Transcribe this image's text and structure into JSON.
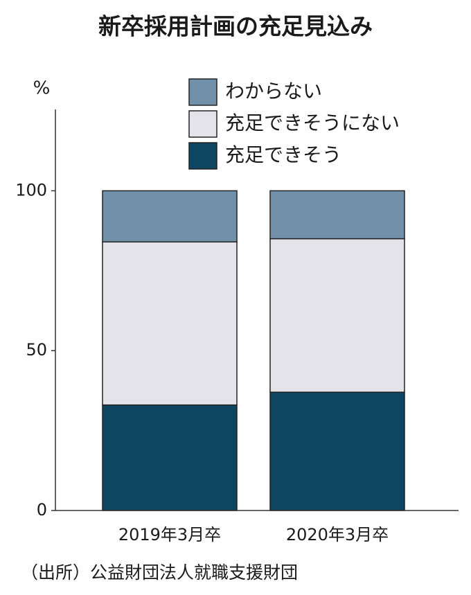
{
  "chart_data": {
    "type": "stacked_bar",
    "title": "新卒採用計画の充足見込み",
    "ylabel": "%",
    "categories": [
      "2019年3月卒",
      "2020年3月卒"
    ],
    "series": [
      {
        "name": "充足できそう",
        "color": "#0c4660",
        "values": [
          33,
          37
        ]
      },
      {
        "name": "充足できそうにない",
        "color": "#e4e3e9",
        "values": [
          51,
          48
        ]
      },
      {
        "name": "わからない",
        "color": "#7190a9",
        "values": [
          16,
          15
        ]
      }
    ],
    "ylim": [
      0,
      125
    ],
    "yticks": [
      0,
      50,
      100
    ],
    "legend": "top-right",
    "source": "（出所）公益財団法人就職支援財団"
  }
}
